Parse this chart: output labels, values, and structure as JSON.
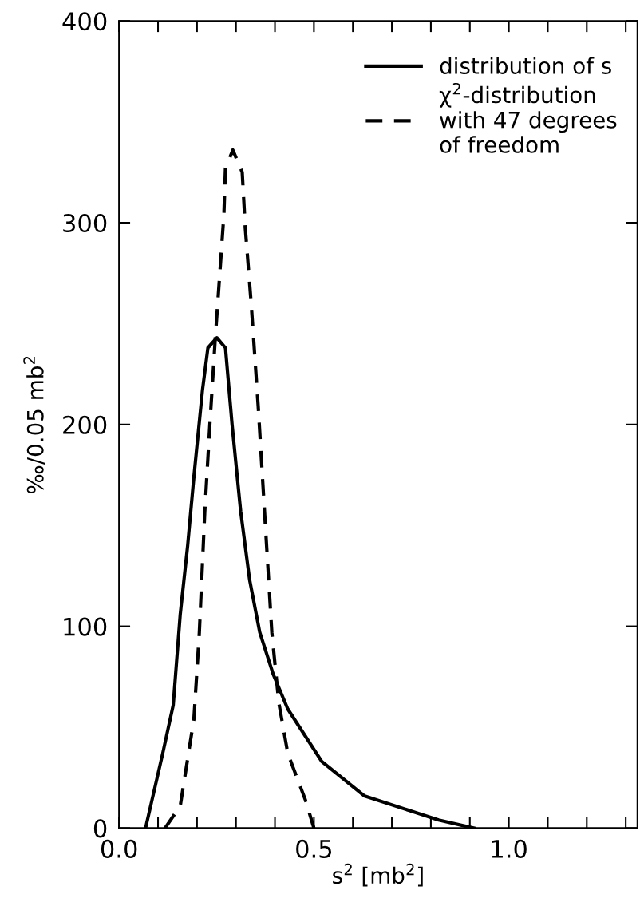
{
  "chart_data": {
    "type": "line",
    "xlabel": "s$^{2}$ [mb$^{2}$]",
    "ylabel": "‰/0.05 mb$^{2}$",
    "xlim": [
      0,
      1.33
    ],
    "ylim": [
      0,
      400
    ],
    "xticks": [
      {
        "value": 0,
        "label": "0.0"
      },
      {
        "value": 0.1,
        "label": null
      },
      {
        "value": 0.2,
        "label": null
      },
      {
        "value": 0.3,
        "label": null
      },
      {
        "value": 0.4,
        "label": null
      },
      {
        "value": 0.5,
        "label": "0.5"
      },
      {
        "value": 0.6,
        "label": null
      },
      {
        "value": 0.7,
        "label": null
      },
      {
        "value": 0.8,
        "label": null
      },
      {
        "value": 0.9,
        "label": null
      },
      {
        "value": 1.0,
        "label": "1.0"
      },
      {
        "value": 1.1,
        "label": null
      },
      {
        "value": 1.2,
        "label": null
      },
      {
        "value": 1.3,
        "label": null
      }
    ],
    "yticks": [
      0,
      100,
      200,
      300,
      400
    ],
    "grid": false,
    "legend": "top right",
    "marker": "none",
    "series": [
      {
        "name": "distribution of s",
        "color": "#000000",
        "line_style": "solid",
        "x": [
          0.068,
          0.112,
          0.139,
          0.157,
          0.176,
          0.192,
          0.214,
          0.228,
          0.251,
          0.273,
          0.29,
          0.312,
          0.335,
          0.361,
          0.396,
          0.433,
          0.52,
          0.629,
          0.82,
          0.91
        ],
        "values": [
          0,
          37,
          61,
          106,
          140,
          174,
          217,
          238,
          243,
          238,
          200,
          157,
          123,
          97,
          76,
          59,
          33,
          16,
          4,
          0
        ]
      },
      {
        "name": "χ$^{2}$-distribution\nwith 47 degrees\nof freedom",
        "color": "#000000",
        "line_style": "dashed",
        "x": [
          0.118,
          0.157,
          0.192,
          0.206,
          0.22,
          0.233,
          0.247,
          0.269,
          0.273,
          0.292,
          0.316,
          0.324,
          0.339,
          0.357,
          0.376,
          0.392,
          0.41,
          0.433,
          0.478,
          0.5
        ],
        "values": [
          0,
          11,
          54,
          97,
          157,
          200,
          243,
          304,
          327,
          336,
          325,
          297,
          260,
          209,
          148,
          97,
          62,
          37,
          14,
          0
        ]
      }
    ]
  }
}
